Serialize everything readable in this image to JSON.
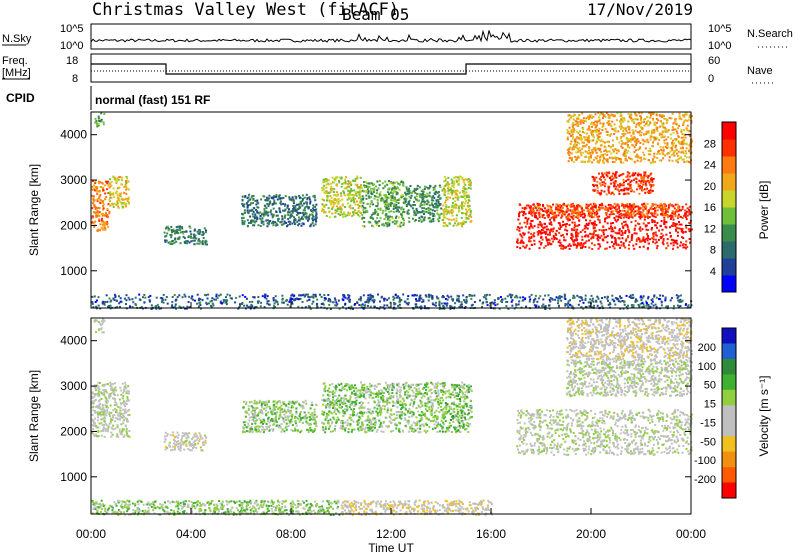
{
  "header": {
    "station": "Christmas Valley West (fitACF)",
    "beam": "Beam 05",
    "date": "17/Nov/2019"
  },
  "noise_panel": {
    "left_label": "N.Sky",
    "right_label": "N.Search",
    "left_ticks": [
      "10^5",
      "10^0"
    ],
    "right_ticks": [
      "10^5",
      "10^0"
    ]
  },
  "freq_panel": {
    "left_label_line1": "Freq.",
    "left_label_line2": "[MHz]",
    "left_ticks": [
      "18",
      "8"
    ],
    "right_ticks": [
      "60",
      "0"
    ],
    "right_label": "Nave"
  },
  "cpid": {
    "label": "CPID",
    "program": "normal (fast) 151 RF"
  },
  "colors": {
    "noise_line": "#000000",
    "freq_line": "#000000",
    "power_scale": [
      "#0000ff",
      "#1f3f99",
      "#2c6b6b",
      "#3a8c4a",
      "#6fbf3a",
      "#c8d52a",
      "#f0a818",
      "#ff7a10",
      "#ff3000",
      "#ff0000"
    ],
    "velocity_scale": [
      "#1010c0",
      "#2060d0",
      "#2f8a3a",
      "#40b030",
      "#90d040",
      "#c0c0c0",
      "#c0c0c0",
      "#f0c020",
      "#f09010",
      "#ff5a00",
      "#ff0000"
    ]
  },
  "chart_data": [
    {
      "type": "heatmap",
      "name": "Power",
      "x_ticks": [
        "00:00",
        "04:00",
        "08:00",
        "12:00",
        "16:00",
        "20:00",
        "00:00"
      ],
      "xlim_hours": [
        0,
        24
      ],
      "y_ticks": [
        "1000",
        "2000",
        "3000",
        "4000"
      ],
      "ylim": [
        180,
        4500
      ],
      "ylabel": "Slant Range [km]",
      "colorbar": {
        "label": "Power [dB]",
        "ticks": [
          "4",
          "8",
          "12",
          "16",
          "20",
          "24",
          "28"
        ],
        "range": [
          0,
          30
        ]
      },
      "blobs": [
        {
          "t": [
            0.0,
            0.7
          ],
          "r": [
            1900,
            3000
          ],
          "value": 22
        },
        {
          "t": [
            0.7,
            1.5
          ],
          "r": [
            2400,
            3100
          ],
          "value": 18
        },
        {
          "t": [
            0.1,
            0.5
          ],
          "r": [
            4200,
            4500
          ],
          "value": 12
        },
        {
          "t": [
            2.9,
            4.6
          ],
          "r": [
            1600,
            2000
          ],
          "value": 9
        },
        {
          "t": [
            6.0,
            9.0
          ],
          "r": [
            2000,
            2700
          ],
          "value": 8
        },
        {
          "t": [
            9.2,
            10.8
          ],
          "r": [
            2200,
            3100
          ],
          "value": 16
        },
        {
          "t": [
            10.8,
            12.5
          ],
          "r": [
            2000,
            3000
          ],
          "value": 12
        },
        {
          "t": [
            12.5,
            14.0
          ],
          "r": [
            2100,
            2900
          ],
          "value": 10
        },
        {
          "t": [
            14.0,
            15.2
          ],
          "r": [
            2000,
            3100
          ],
          "value": 16
        },
        {
          "t": [
            17.0,
            24.0
          ],
          "r": [
            1500,
            2500
          ],
          "value": 28
        },
        {
          "t": [
            17.5,
            23.5
          ],
          "r": [
            2200,
            2500
          ],
          "value": 24
        },
        {
          "t": [
            20.0,
            22.5
          ],
          "r": [
            2700,
            3200
          ],
          "value": 26
        },
        {
          "t": [
            19.0,
            24.0
          ],
          "r": [
            3400,
            4500
          ],
          "value": 20
        },
        {
          "t": [
            0.0,
            24.0
          ],
          "r": [
            180,
            500
          ],
          "value": 6
        }
      ]
    },
    {
      "type": "heatmap",
      "name": "Velocity",
      "x_ticks": [
        "00:00",
        "04:00",
        "08:00",
        "12:00",
        "16:00",
        "20:00",
        "00:00"
      ],
      "xlim_hours": [
        0,
        24
      ],
      "xlabel": "Time UT",
      "y_ticks": [
        "1000",
        "2000",
        "3000",
        "4000"
      ],
      "ylim": [
        180,
        4500
      ],
      "ylabel": "Slant Range [km]",
      "colorbar": {
        "label": "Velocity [m s⁻¹]",
        "ticks": [
          "200",
          "100",
          "50",
          "15",
          "-15",
          "-50",
          "-100",
          "-200"
        ],
        "range": [
          -250,
          250
        ]
      },
      "blobs": [
        {
          "t": [
            0.0,
            1.5
          ],
          "r": [
            1900,
            3100
          ],
          "value": 0
        },
        {
          "t": [
            0.1,
            0.5
          ],
          "r": [
            4200,
            4500
          ],
          "value": 0
        },
        {
          "t": [
            2.9,
            4.6
          ],
          "r": [
            1600,
            2000
          ],
          "value": -30
        },
        {
          "t": [
            6.0,
            9.0
          ],
          "r": [
            2000,
            2700
          ],
          "value": 40
        },
        {
          "t": [
            9.2,
            14.0
          ],
          "r": [
            2000,
            3100
          ],
          "value": 45
        },
        {
          "t": [
            14.0,
            15.2
          ],
          "r": [
            2000,
            3100
          ],
          "value": 60
        },
        {
          "t": [
            17.0,
            24.0
          ],
          "r": [
            1500,
            2500
          ],
          "value": 0
        },
        {
          "t": [
            19.0,
            24.0
          ],
          "r": [
            2800,
            3600
          ],
          "value": 0
        },
        {
          "t": [
            19.0,
            24.0
          ],
          "r": [
            3600,
            4500
          ],
          "value": -40
        },
        {
          "t": [
            0.0,
            10.0
          ],
          "r": [
            180,
            500
          ],
          "value": 40
        },
        {
          "t": [
            10.0,
            16.0
          ],
          "r": [
            180,
            500
          ],
          "value": -40
        }
      ]
    }
  ]
}
